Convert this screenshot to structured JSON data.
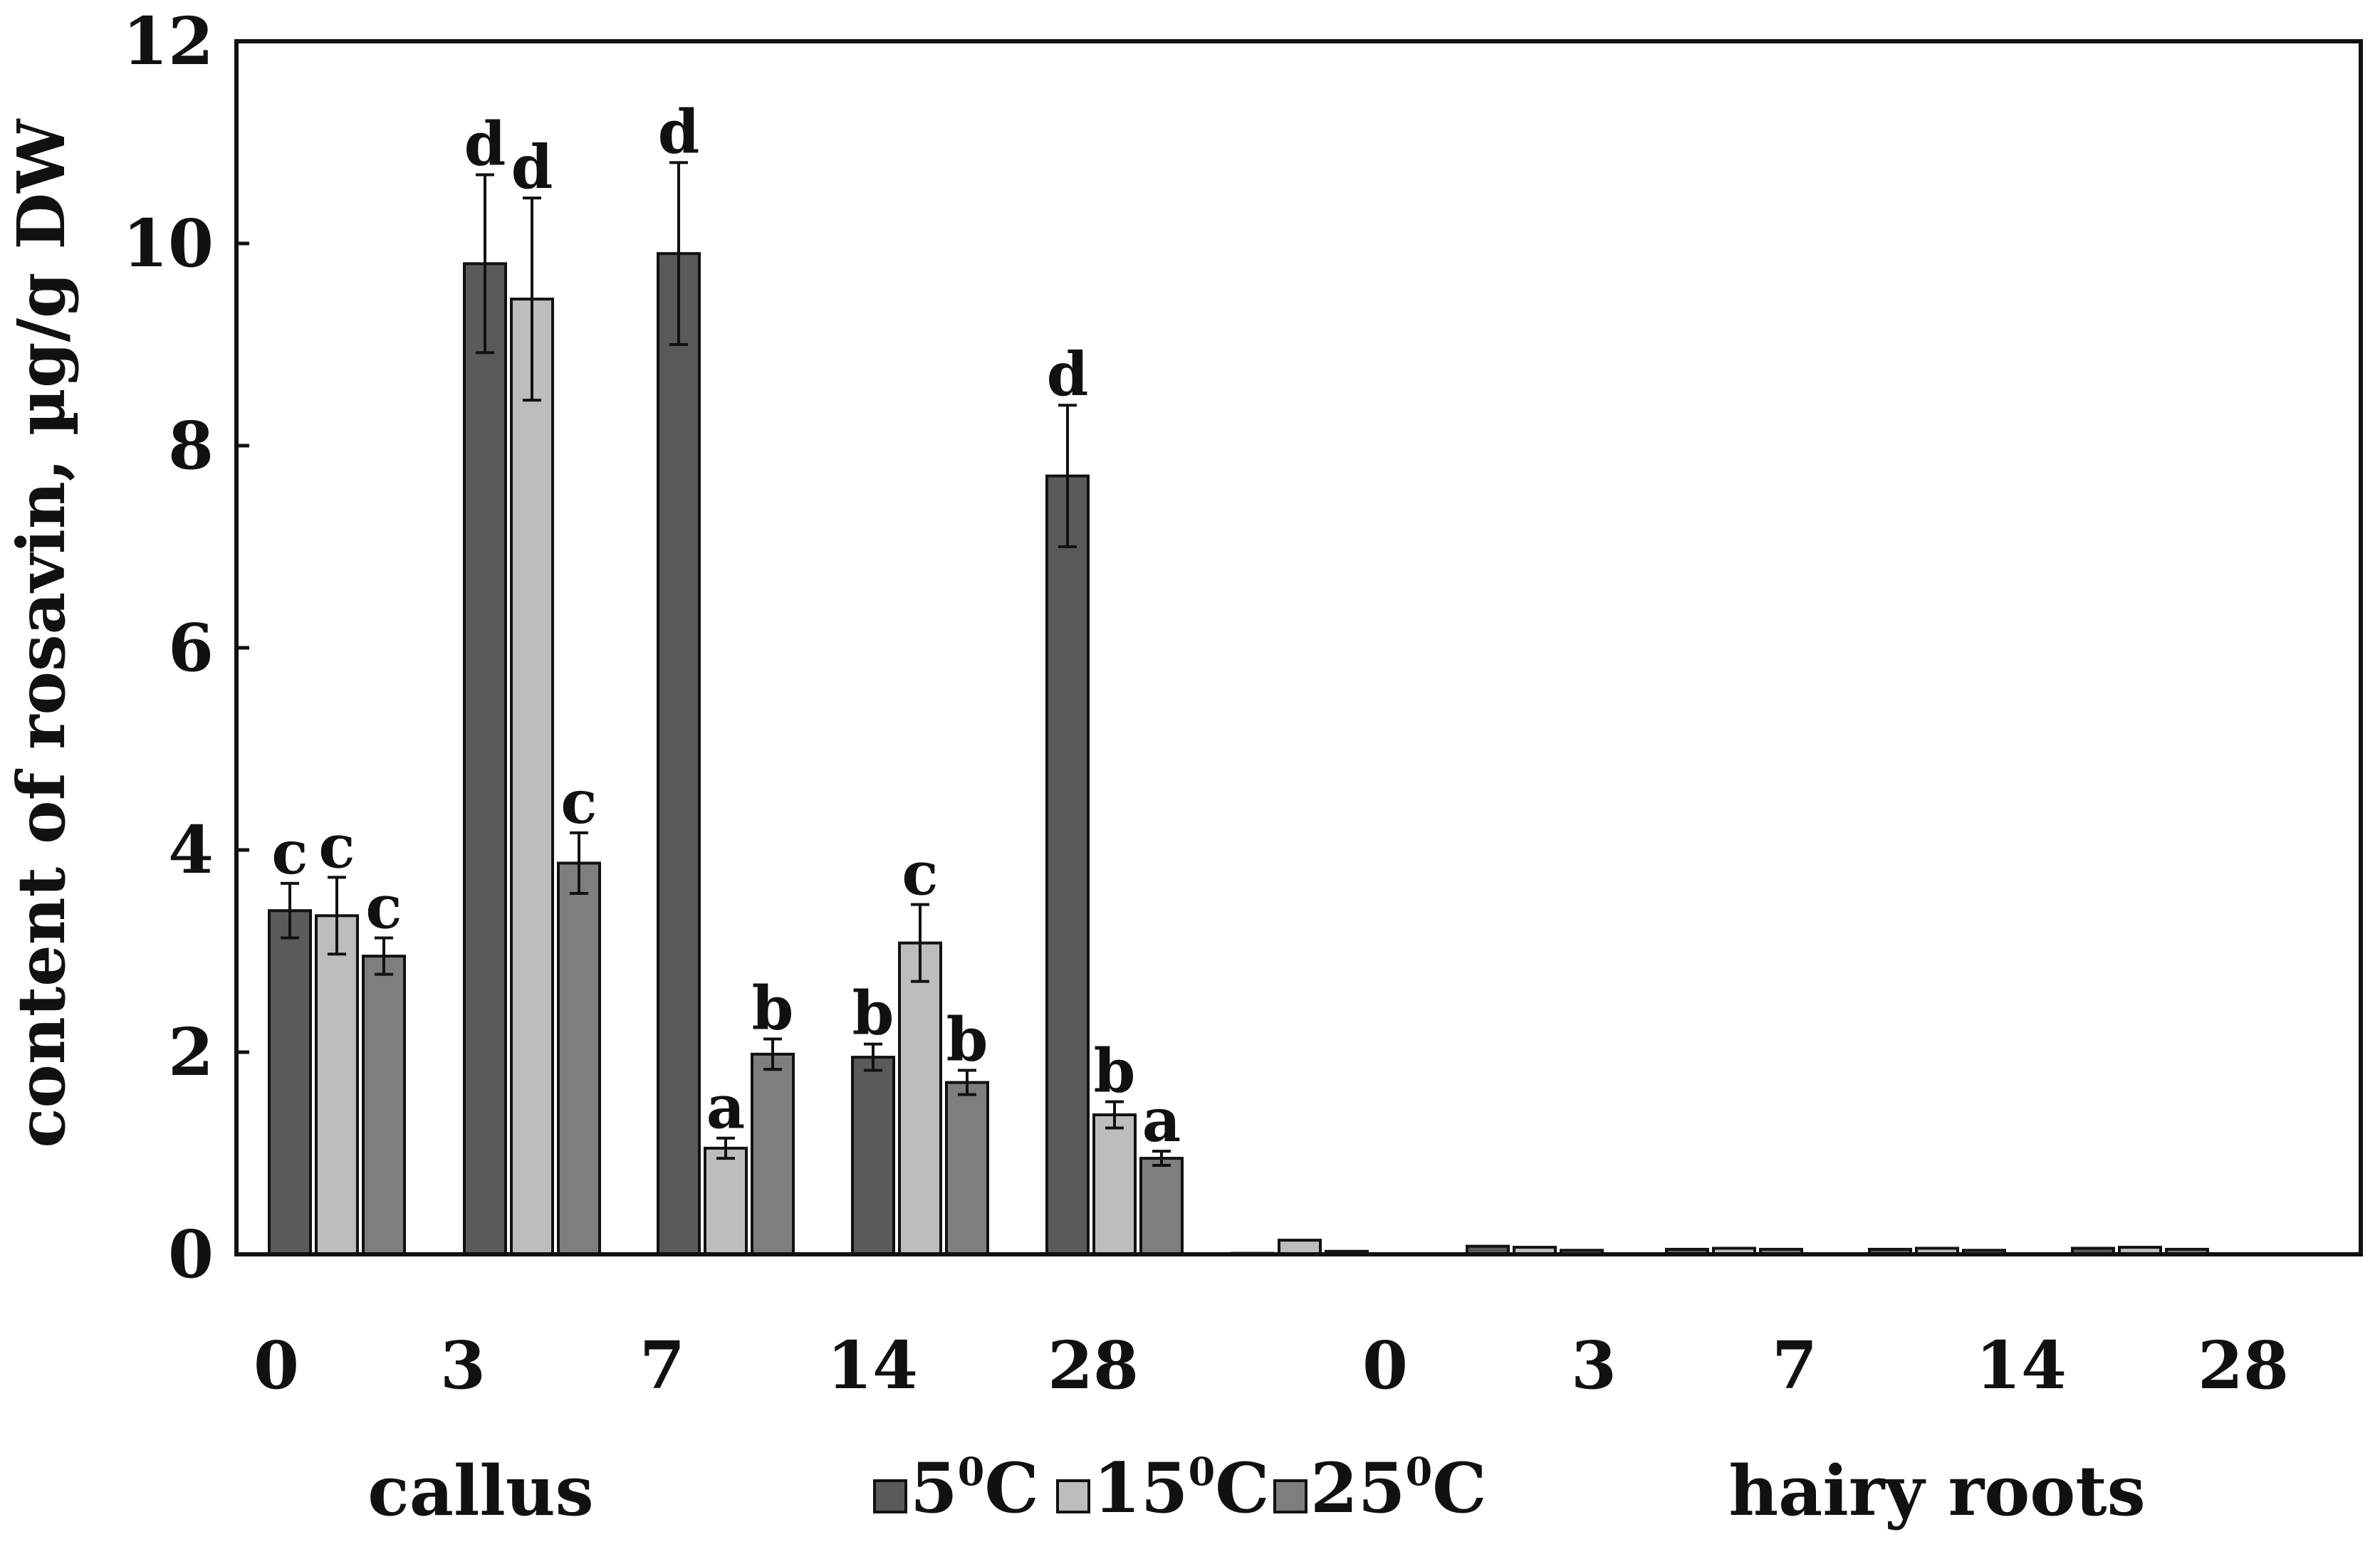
{
  "chart_data": {
    "type": "bar",
    "ylabel": "content of rosavin, µg/g DW",
    "ylim": [
      0,
      12
    ],
    "yticks": [
      "0",
      "2",
      "4",
      "6",
      "8",
      "10",
      "12"
    ],
    "groups": [
      {
        "label": "callus",
        "categories": [
          "0",
          "3",
          "7",
          "14",
          "28"
        ],
        "series": [
          {
            "name": "5°C",
            "values": [
              3.4,
              9.8,
              9.9,
              1.95,
              7.7
            ],
            "errors": [
              0.27,
              0.88,
              0.9,
              0.13,
              0.7
            ],
            "letters": [
              "c",
              "d",
              "d",
              "b",
              "d"
            ]
          },
          {
            "name": "15°C",
            "values": [
              3.35,
              9.45,
              1.05,
              3.08,
              1.38
            ],
            "errors": [
              0.38,
              1.0,
              0.1,
              0.38,
              0.13
            ],
            "letters": [
              "c",
              "d",
              "a",
              "c",
              "b"
            ]
          },
          {
            "name": "25°C",
            "values": [
              2.95,
              3.87,
              1.98,
              1.7,
              0.95
            ],
            "errors": [
              0.18,
              0.3,
              0.15,
              0.12,
              0.07
            ],
            "letters": [
              "c",
              "c",
              "b",
              "b",
              "a"
            ]
          }
        ]
      },
      {
        "label": "hairy roots",
        "categories": [
          "0",
          "3",
          "7",
          "14",
          "28"
        ],
        "series": [
          {
            "name": "5°C",
            "values": [
              0.01,
              0.08,
              0.05,
              0.05,
              0.06
            ]
          },
          {
            "name": "15°C",
            "values": [
              0.14,
              0.07,
              0.06,
              0.06,
              0.07
            ]
          },
          {
            "name": "25°C",
            "values": [
              0.03,
              0.04,
              0.05,
              0.04,
              0.05
            ]
          }
        ]
      }
    ],
    "legend": {
      "position": "bottom-center",
      "entries": [
        {
          "base": "5",
          "sup": "0",
          "unit": "C",
          "color": "#5a5a5a"
        },
        {
          "base": "15",
          "sup": "0",
          "unit": "C",
          "color": "#bdbdbd"
        },
        {
          "base": "25",
          "sup": "0",
          "unit": "C",
          "color": "#7e7e7e"
        }
      ]
    },
    "colors": {
      "5C": "#5a5a5a",
      "15C": "#bdbdbd",
      "25C": "#7e7e7e"
    },
    "grid": false
  }
}
